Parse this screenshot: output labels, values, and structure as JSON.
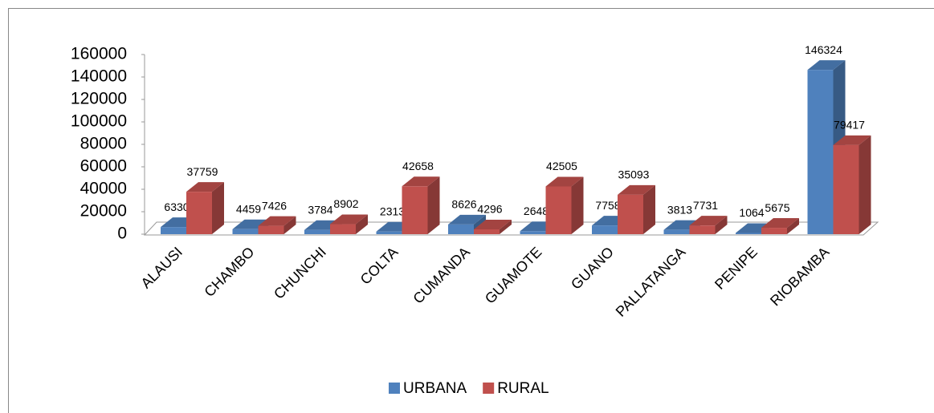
{
  "chart_data": {
    "type": "bar3d",
    "categories": [
      "ALAUSI",
      "CHAMBO",
      "CHUNCHI",
      "COLTA",
      "CUMANDA",
      "GUAMOTE",
      "GUANO",
      "PALLATANGA",
      "PENIPE",
      "RIOBAMBA"
    ],
    "series": [
      {
        "name": "URBANA",
        "color": "#4f81bd",
        "values": [
          6330,
          4459,
          3784,
          2313,
          8626,
          2648,
          7758,
          3813,
          1064,
          146324
        ]
      },
      {
        "name": "RURAL",
        "color": "#c0504d",
        "values": [
          37759,
          7426,
          8902,
          42658,
          4296,
          42505,
          35093,
          7731,
          5675,
          79417
        ]
      }
    ],
    "ylim": [
      0,
      160000
    ],
    "yticks": [
      0,
      20000,
      40000,
      60000,
      80000,
      100000,
      120000,
      140000,
      160000
    ],
    "legend": "bottom"
  }
}
